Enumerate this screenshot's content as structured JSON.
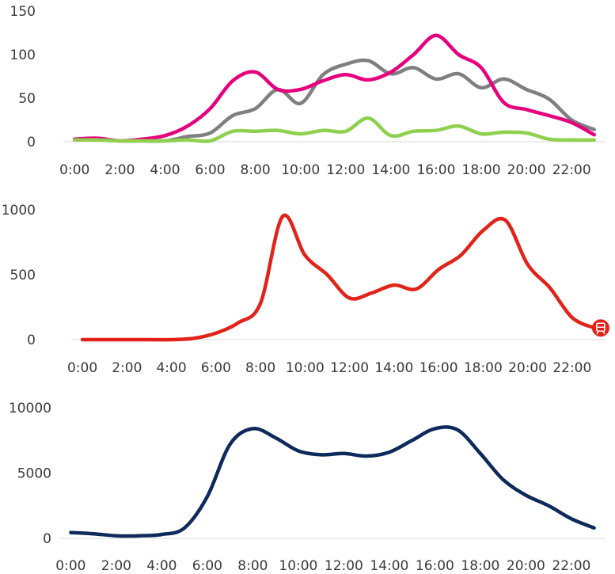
{
  "chart_data": [
    {
      "type": "line",
      "x_ticks": [
        "0:00",
        "2:00",
        "4:00",
        "6:00",
        "8:00",
        "10:00",
        "12:00",
        "14:00",
        "16:00",
        "18:00",
        "20:00",
        "22:00"
      ],
      "x": [
        0,
        1,
        2,
        3,
        4,
        5,
        6,
        7,
        8,
        9,
        10,
        11,
        12,
        13,
        14,
        15,
        16,
        17,
        18,
        19,
        20,
        21,
        22,
        23
      ],
      "ylim": [
        0,
        150
      ],
      "y_ticks": [
        "0",
        "50",
        "100",
        "150"
      ],
      "y_tick_values": [
        0,
        50,
        100,
        150
      ],
      "grid": false,
      "series": [
        {
          "color": "#7f7f7f",
          "values": [
            2,
            3,
            1,
            1,
            1,
            6,
            10,
            30,
            38,
            60,
            44,
            77,
            89,
            93,
            78,
            85,
            72,
            78,
            62,
            72,
            60,
            49,
            25,
            14
          ]
        },
        {
          "color": "#e6007e",
          "values": [
            3,
            4,
            1,
            3,
            7,
            18,
            38,
            70,
            80,
            60,
            60,
            70,
            77,
            71,
            80,
            100,
            122,
            100,
            85,
            45,
            37,
            30,
            22,
            8
          ]
        },
        {
          "color": "#8fd14f",
          "values": [
            2,
            2,
            1,
            1,
            1,
            2,
            1,
            12,
            12,
            13,
            9,
            13,
            12,
            27,
            7,
            12,
            13,
            18,
            9,
            11,
            10,
            3,
            2,
            2
          ]
        }
      ]
    },
    {
      "type": "line",
      "x_ticks": [
        "0:00",
        "2:00",
        "4:00",
        "6:00",
        "8:00",
        "10:00",
        "12:00",
        "14:00",
        "16:00",
        "18:00",
        "20:00",
        "22:00"
      ],
      "x": [
        0,
        1,
        2,
        3,
        4,
        5,
        6,
        7,
        8,
        9,
        10,
        11,
        12,
        13,
        14,
        15,
        16,
        17,
        18,
        19,
        20,
        21,
        22,
        23
      ],
      "ylim": [
        0,
        1000
      ],
      "y_ticks": [
        "0",
        "500",
        "1000"
      ],
      "y_tick_values": [
        0,
        500,
        1000
      ],
      "grid": false,
      "series": [
        {
          "color": "#e2231a",
          "values": [
            0,
            0,
            0,
            0,
            0,
            10,
            50,
            130,
            280,
            950,
            650,
            500,
            320,
            360,
            420,
            390,
            540,
            650,
            840,
            920,
            580,
            400,
            170,
            90
          ]
        }
      ],
      "end_marker_icon": "tram-icon"
    },
    {
      "type": "line",
      "x_ticks": [
        "0:00",
        "2:00",
        "4:00",
        "6:00",
        "8:00",
        "10:00",
        "12:00",
        "14:00",
        "16:00",
        "18:00",
        "20:00",
        "22:00"
      ],
      "x": [
        0,
        1,
        2,
        3,
        4,
        5,
        6,
        7,
        8,
        9,
        10,
        11,
        12,
        13,
        14,
        15,
        16,
        17,
        18,
        19,
        20,
        21,
        22,
        23
      ],
      "ylim": [
        0,
        10000
      ],
      "y_ticks": [
        "0",
        "5000",
        "10000"
      ],
      "y_tick_values": [
        0,
        5000,
        10000
      ],
      "grid": false,
      "series": [
        {
          "color": "#0e2a5c",
          "values": [
            450,
            350,
            200,
            200,
            300,
            800,
            3200,
            7200,
            8400,
            7700,
            6700,
            6400,
            6500,
            6300,
            6600,
            7500,
            8400,
            8300,
            6500,
            4500,
            3300,
            2500,
            1500,
            800
          ]
        }
      ]
    }
  ]
}
